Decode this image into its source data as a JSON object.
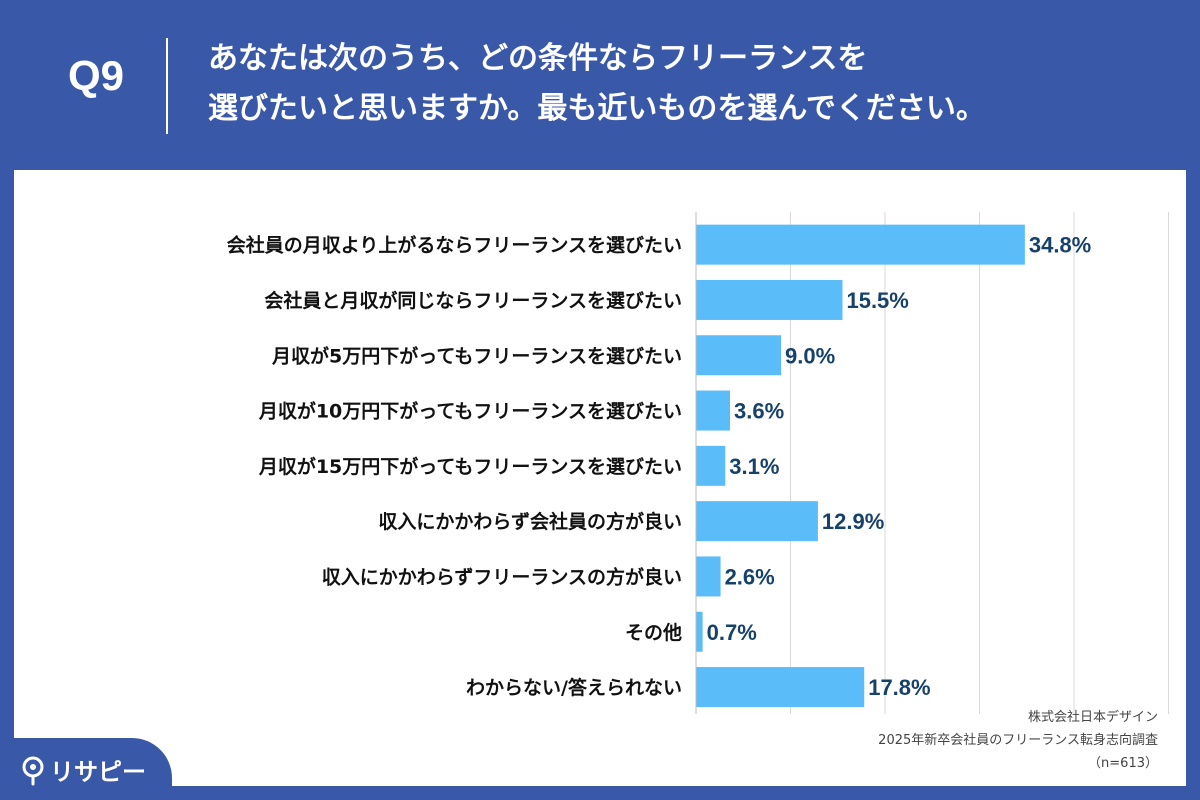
{
  "header": {
    "question_number": "Q9",
    "question_line1": "あなたは次のうち、どの条件ならフリーランスを",
    "question_line2": "選びたいと思いますか。最も近いものを選んでください。"
  },
  "chart_data": {
    "type": "bar",
    "orientation": "horizontal",
    "categories": [
      "会社員の月収より上がるならフリーランスを選びたい",
      "会社員と月収が同じならフリーランスを選びたい",
      "月収が5万円下がってもフリーランスを選びたい",
      "月収が10万円下がってもフリーランスを選びたい",
      "月収が15万円下がってもフリーランスを選びたい",
      "収入にかかわらず会社員の方が良い",
      "収入にかかわらずフリーランスの方が良い",
      "その他",
      "わからない/答えられない"
    ],
    "values": [
      34.8,
      15.5,
      9.0,
      3.6,
      3.1,
      12.9,
      2.6,
      0.7,
      17.8
    ],
    "data_labels": [
      "34.8%",
      "15.5%",
      "9.0%",
      "3.6%",
      "3.1%",
      "12.9%",
      "2.6%",
      "0.7%",
      "17.8%"
    ],
    "xlim": [
      0,
      50
    ],
    "grid": true,
    "bar_color": "#5bbcfa",
    "label_color": "#16416b"
  },
  "credit": {
    "company": "株式会社日本デザイン",
    "survey": "2025年新卒会社員のフリーランス転身志向調査",
    "sample": "（n=613）"
  },
  "logo": {
    "text": "リサピー",
    "icon": "pin-icon"
  },
  "colors": {
    "background": "#3a58a8",
    "panel": "#ffffff"
  }
}
